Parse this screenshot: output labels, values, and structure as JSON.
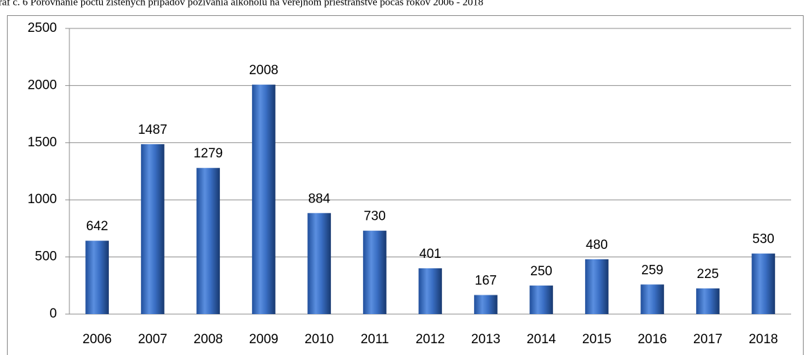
{
  "chart_data": {
    "type": "bar",
    "title": "raf č. 6 Porovnanie počtu zistených prípadov požívania alkoholu na verejnom priestranstve počas rokov 2006 - 2018",
    "categories": [
      "2006",
      "2007",
      "2008",
      "2009",
      "2010",
      "2011",
      "2012",
      "2013",
      "2014",
      "2015",
      "2016",
      "2017",
      "2018"
    ],
    "values": [
      642,
      1487,
      1279,
      2008,
      884,
      730,
      401,
      167,
      250,
      480,
      259,
      225,
      530
    ],
    "color": "#3a6fc4",
    "ylim": [
      0,
      2500
    ],
    "yticks": [
      0,
      500,
      1000,
      1500,
      2000,
      2500
    ],
    "grid": true
  }
}
